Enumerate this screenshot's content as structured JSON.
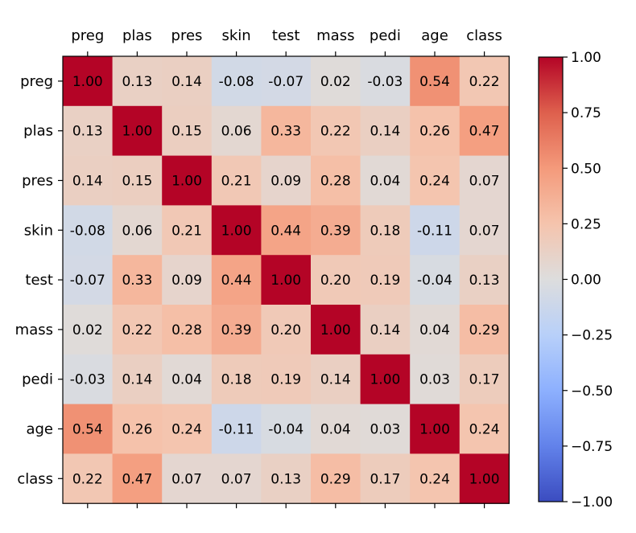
{
  "chart_data": {
    "type": "heatmap",
    "title": "",
    "xlabel": "",
    "ylabel": "",
    "labels": [
      "preg",
      "plas",
      "pres",
      "skin",
      "test",
      "mass",
      "pedi",
      "age",
      "class"
    ],
    "matrix": [
      [
        1.0,
        0.13,
        0.14,
        -0.08,
        -0.07,
        0.02,
        -0.03,
        0.54,
        0.22
      ],
      [
        0.13,
        1.0,
        0.15,
        0.06,
        0.33,
        0.22,
        0.14,
        0.26,
        0.47
      ],
      [
        0.14,
        0.15,
        1.0,
        0.21,
        0.09,
        0.28,
        0.04,
        0.24,
        0.07
      ],
      [
        -0.08,
        0.06,
        0.21,
        1.0,
        0.44,
        0.39,
        0.18,
        -0.11,
        0.07
      ],
      [
        -0.07,
        0.33,
        0.09,
        0.44,
        1.0,
        0.2,
        0.19,
        -0.04,
        0.13
      ],
      [
        0.02,
        0.22,
        0.28,
        0.39,
        0.2,
        1.0,
        0.14,
        0.04,
        0.29
      ],
      [
        -0.03,
        0.14,
        0.04,
        0.18,
        0.19,
        0.14,
        1.0,
        0.03,
        0.17
      ],
      [
        0.54,
        0.26,
        0.24,
        -0.11,
        -0.04,
        0.04,
        0.03,
        1.0,
        0.24
      ],
      [
        0.22,
        0.47,
        0.07,
        0.07,
        0.13,
        0.29,
        0.17,
        0.24,
        1.0
      ]
    ],
    "value_range": [
      -1.0,
      1.0
    ],
    "colormap": "coolwarm",
    "x_axis_position": "top",
    "colorbar": {
      "ticks": [
        1.0,
        0.75,
        0.5,
        0.25,
        0.0,
        -0.25,
        -0.5,
        -0.75,
        -1.0
      ],
      "tick_labels": [
        "1.00",
        "0.75",
        "0.50",
        "0.25",
        "0.00",
        "−0.25",
        "−0.50",
        "−0.75",
        "−1.00"
      ]
    },
    "grid": false
  }
}
